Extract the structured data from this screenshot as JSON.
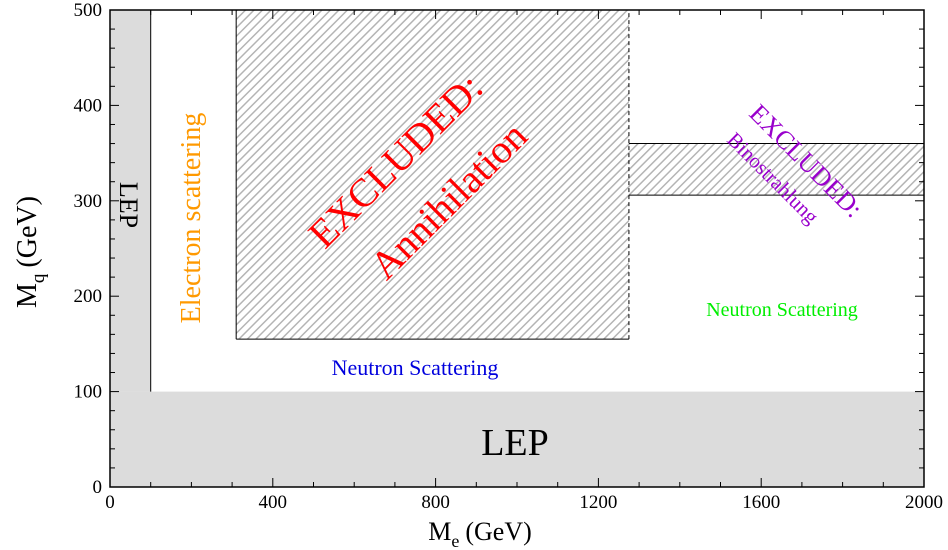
{
  "chart_data": {
    "type": "area",
    "xlabel": "M",
    "xlabel_sub": "e",
    "xlabel_unit": "(GeV)",
    "ylabel": "M",
    "ylabel_sub": "q",
    "ylabel_unit": "(GeV)",
    "xlim": [
      0,
      2000
    ],
    "ylim": [
      0,
      500
    ],
    "xticks": [
      0,
      400,
      800,
      1200,
      1600,
      2000
    ],
    "yticks": [
      0,
      100,
      200,
      300,
      400,
      500
    ],
    "grid": false,
    "colors": {
      "lep_fill": "#dcdcdc",
      "hatch": "#b4b4b4",
      "annihilation_label": "#ff0000",
      "binostrahlung_label": "#9900cc",
      "electron_label": "#ff9900",
      "neutron_label_1": "#0000dd",
      "neutron_label_2": "#00ee00"
    },
    "regions": [
      {
        "name": "LEP",
        "kind": "solid",
        "x": [
          0,
          2000
        ],
        "y": [
          0,
          100
        ]
      },
      {
        "name": "LEP",
        "kind": "solid",
        "x": [
          0,
          100
        ],
        "y": [
          100,
          500
        ]
      },
      {
        "name": "EXCLUDED: Annihilation",
        "kind": "hatched",
        "x": [
          310,
          1275
        ],
        "y": [
          155,
          500
        ]
      },
      {
        "name": "EXCLUDED: Binostrahlung",
        "kind": "hatched",
        "x": [
          1275,
          2000
        ],
        "y": [
          306,
          360
        ]
      }
    ],
    "boundaries": [
      {
        "x": [
          100,
          100
        ],
        "y": [
          100,
          500
        ],
        "dash": false
      },
      {
        "x": [
          310,
          310
        ],
        "y": [
          155,
          500
        ],
        "dash": false
      },
      {
        "x": [
          310,
          1275
        ],
        "y": [
          155,
          155
        ],
        "dash": false
      },
      {
        "x": [
          1275,
          1275
        ],
        "y": [
          155,
          500
        ],
        "dash": true
      },
      {
        "x": [
          1275,
          2000
        ],
        "y": [
          360,
          360
        ],
        "dash": false
      },
      {
        "x": [
          1275,
          2000
        ],
        "y": [
          306,
          306
        ],
        "dash": false
      }
    ],
    "annotations": {
      "lep_bottom": "LEP",
      "lep_left": "LEP",
      "electron_scattering": "Electron scattering",
      "annihilation_line1": "EXCLUDED:",
      "annihilation_line2": "Annihilation",
      "binostrahlung_line1": "EXCLUDED:",
      "binostrahlung_line2": "Binostrahlung",
      "neutron_scattering_1": "Neutron Scattering",
      "neutron_scattering_2": "Neutron Scattering"
    }
  }
}
